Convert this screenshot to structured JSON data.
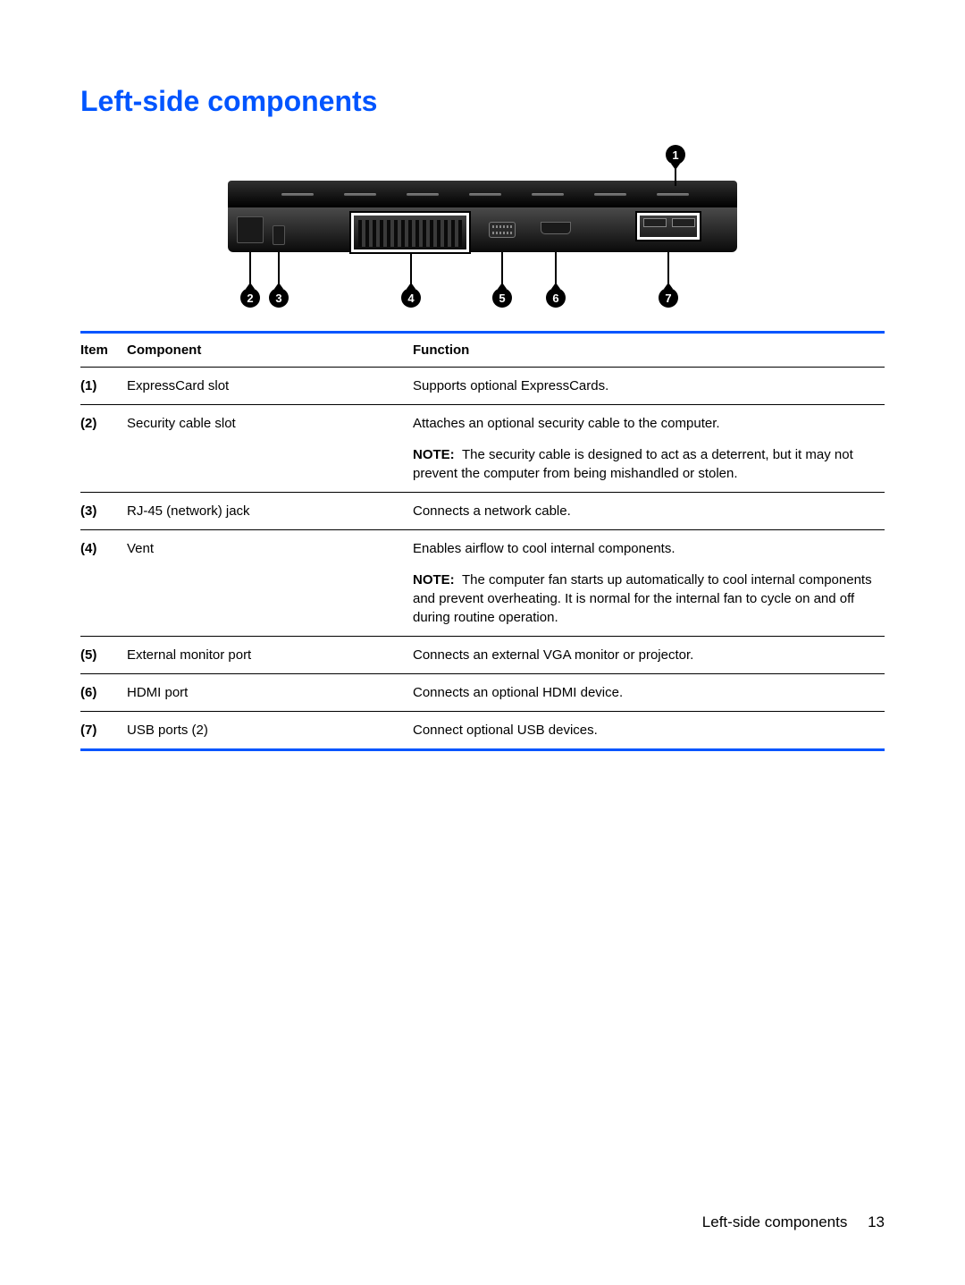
{
  "colors": {
    "title": "#0055ff",
    "table_border": "#0055ff",
    "text": "#000000",
    "background": "#ffffff"
  },
  "page": {
    "title": "Left-side components",
    "footer_section": "Left-side components",
    "footer_page": "13"
  },
  "diagram": {
    "callout_count": 7
  },
  "table": {
    "headers": {
      "item": "Item",
      "component": "Component",
      "function": "Function"
    },
    "rows": [
      {
        "item": "(1)",
        "component": "ExpressCard slot",
        "function": "Supports optional ExpressCards.",
        "note_label": "",
        "note_text": ""
      },
      {
        "item": "(2)",
        "component": "Security cable slot",
        "function": "Attaches an optional security cable to the computer.",
        "note_label": "NOTE:",
        "note_text": "The security cable is designed to act as a deterrent, but it may not prevent the computer from being mishandled or stolen."
      },
      {
        "item": "(3)",
        "component": "RJ-45 (network) jack",
        "function": "Connects a network cable.",
        "note_label": "",
        "note_text": ""
      },
      {
        "item": "(4)",
        "component": "Vent",
        "function": "Enables airflow to cool internal components.",
        "note_label": "NOTE:",
        "note_text": "The computer fan starts up automatically to cool internal components and prevent overheating. It is normal for the internal fan to cycle on and off during routine operation."
      },
      {
        "item": "(5)",
        "component": "External monitor port",
        "function": "Connects an external VGA monitor or projector.",
        "note_label": "",
        "note_text": ""
      },
      {
        "item": "(6)",
        "component": "HDMI port",
        "function": "Connects an optional HDMI device.",
        "note_label": "",
        "note_text": ""
      },
      {
        "item": "(7)",
        "component": "USB ports (2)",
        "function": "Connect optional USB devices.",
        "note_label": "",
        "note_text": ""
      }
    ]
  }
}
